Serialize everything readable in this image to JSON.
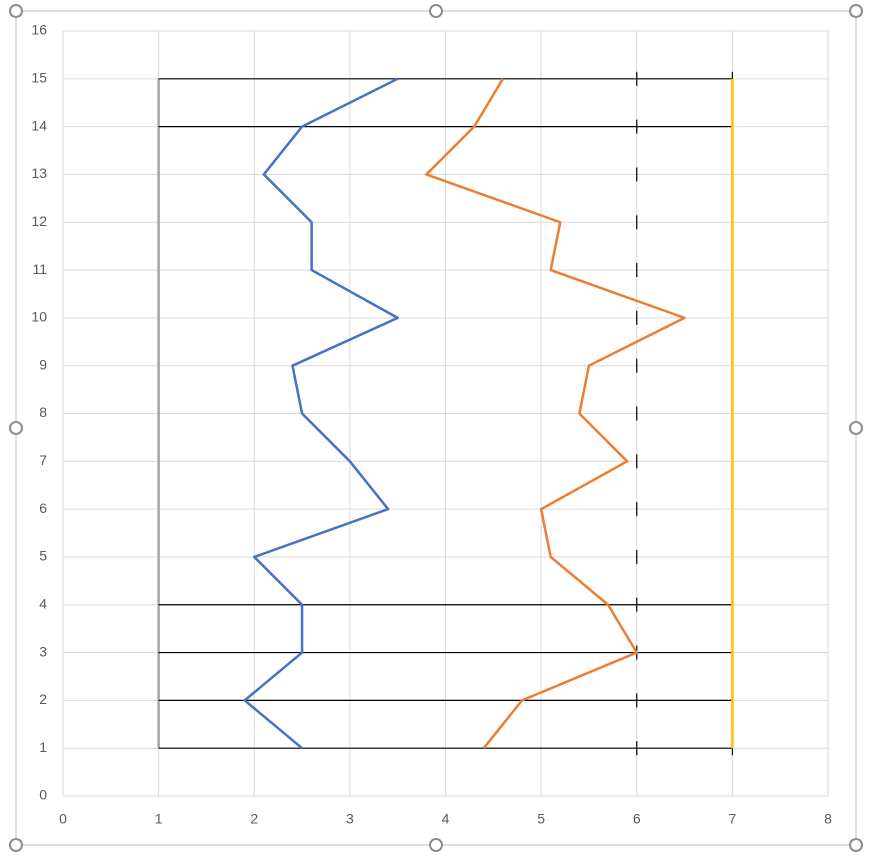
{
  "chart_data": {
    "type": "scatter",
    "xlim": [
      0,
      8
    ],
    "xticks": [
      0,
      1,
      2,
      3,
      4,
      5,
      6,
      7,
      8
    ],
    "ylim": [
      0,
      16
    ],
    "yticks": [
      0,
      1,
      2,
      3,
      4,
      5,
      6,
      7,
      8,
      9,
      10,
      11,
      12,
      13,
      14,
      15,
      16
    ],
    "grid": true,
    "series": [
      {
        "color": "#a5a5a5",
        "style": "line",
        "x": [
          1,
          1
        ],
        "values": [
          1,
          15
        ]
      },
      {
        "color": "#000000",
        "style": "line",
        "x": [
          1,
          7,
          null,
          1,
          7,
          null,
          1,
          7,
          null,
          1,
          7,
          null,
          1,
          7,
          null,
          1,
          7
        ],
        "values": [
          1,
          1,
          null,
          2,
          2,
          null,
          3,
          3,
          null,
          4,
          4,
          null,
          14,
          14,
          null,
          15,
          15
        ]
      },
      {
        "color": "#000000",
        "style": "tick",
        "x": [
          6,
          6,
          6,
          6,
          6,
          6,
          6,
          6,
          6,
          6,
          6,
          6,
          6,
          6,
          6
        ],
        "values": [
          1,
          2,
          3,
          4,
          5,
          6,
          7,
          8,
          9,
          10,
          11,
          12,
          13,
          14,
          15
        ]
      },
      {
        "color": "#000000",
        "style": "tick",
        "x": [
          7,
          7,
          7,
          7,
          7,
          7,
          7,
          7,
          7,
          7,
          7,
          7,
          7,
          7,
          7
        ],
        "values": [
          1,
          2,
          3,
          4,
          5,
          6,
          7,
          8,
          9,
          10,
          11,
          12,
          13,
          14,
          15
        ]
      },
      {
        "color": "#ffc000",
        "style": "line",
        "x": [
          7,
          7
        ],
        "values": [
          1,
          15
        ]
      },
      {
        "color": "#4472c4",
        "style": "line",
        "x": [
          2.5,
          1.9,
          2.5,
          2.5,
          2.0,
          3.4,
          3.0,
          2.5,
          2.4,
          3.5,
          2.6,
          2.6,
          2.1,
          2.5,
          3.5
        ],
        "values": [
          1,
          2,
          3,
          4,
          5,
          6,
          7,
          8,
          9,
          10,
          11,
          12,
          13,
          14,
          15
        ]
      },
      {
        "color": "#ed7d31",
        "style": "line",
        "x": [
          4.4,
          4.8,
          6.0,
          5.7,
          5.1,
          5.0,
          5.9,
          5.4,
          5.5,
          6.5,
          5.1,
          5.2,
          3.8,
          4.3,
          4.6
        ],
        "values": [
          1,
          2,
          3,
          4,
          5,
          6,
          7,
          8,
          9,
          10,
          11,
          12,
          13,
          14,
          15
        ]
      }
    ]
  }
}
